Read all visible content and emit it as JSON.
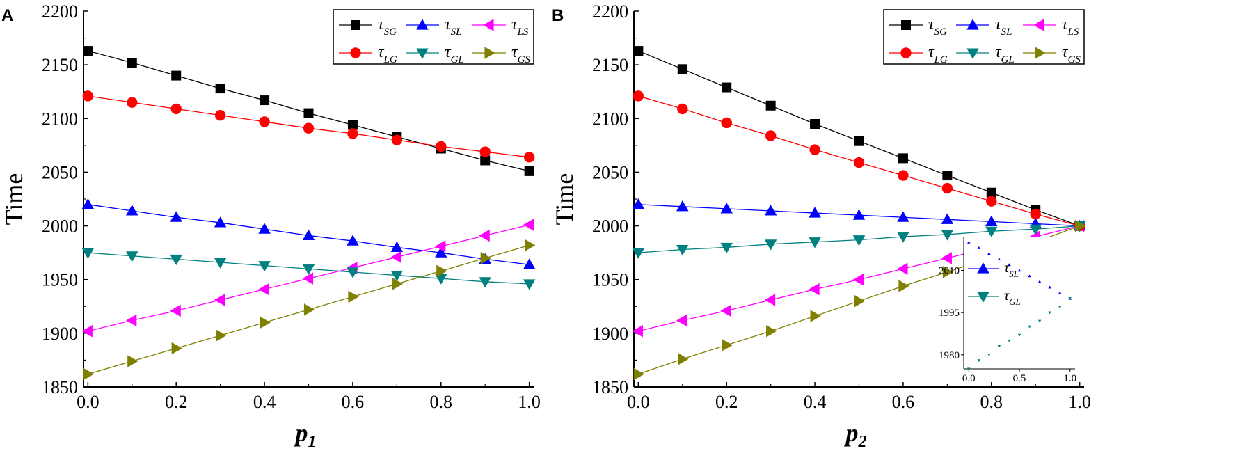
{
  "chart_data": [
    {
      "type": "line",
      "panel_label": "A",
      "xlabel_main": "p",
      "xlabel_sub": "1",
      "ylabel": "Time",
      "xlim": [
        -0.01,
        1.01
      ],
      "ylim": [
        1850,
        2200
      ],
      "xticks": [
        "0.0",
        "0.2",
        "0.4",
        "0.6",
        "0.8",
        "1.0"
      ],
      "yticks": [
        "1850",
        "1900",
        "1950",
        "2000",
        "2050",
        "2100",
        "2150",
        "2200"
      ],
      "legend_placement": "top-right",
      "x": [
        0,
        0.1,
        0.2,
        0.3,
        0.4,
        0.5,
        0.6,
        0.7,
        0.8,
        0.9,
        1.0
      ],
      "series": [
        {
          "name": "τ",
          "sub": "SG",
          "color": "#000000",
          "marker": "square",
          "values": [
            2163,
            2152,
            2140,
            2128,
            2117,
            2105,
            2094,
            2083,
            2072,
            2061,
            2051
          ]
        },
        {
          "name": "τ",
          "sub": "SL",
          "color": "#0000ff",
          "marker": "triangle-up",
          "values": [
            2020,
            2014,
            2008,
            2003,
            1997,
            1991,
            1986,
            1980,
            1975,
            1969,
            1964
          ]
        },
        {
          "name": "τ",
          "sub": "LS",
          "color": "#ff00ff",
          "marker": "triangle-left",
          "values": [
            1902,
            1912,
            1921,
            1931,
            1941,
            1951,
            1961,
            1971,
            1981,
            1991,
            2001
          ]
        },
        {
          "name": "τ",
          "sub": "LG",
          "color": "#ff0000",
          "marker": "circle",
          "values": [
            2121,
            2115,
            2109,
            2103,
            2097,
            2091,
            2086,
            2080,
            2074,
            2069,
            2064
          ]
        },
        {
          "name": "τ",
          "sub": "GL",
          "color": "#008080",
          "marker": "triangle-down",
          "values": [
            1975,
            1972,
            1969,
            1966,
            1963,
            1960,
            1957,
            1954,
            1951,
            1948,
            1946
          ]
        },
        {
          "name": "τ",
          "sub": "GS",
          "color": "#808000",
          "marker": "triangle-right",
          "values": [
            1862,
            1874,
            1886,
            1898,
            1910,
            1922,
            1934,
            1946,
            1958,
            1970,
            1982
          ]
        }
      ]
    },
    {
      "type": "line",
      "panel_label": "B",
      "xlabel_main": "p",
      "xlabel_sub": "2",
      "ylabel": "Time",
      "xlim": [
        -0.01,
        1.01
      ],
      "ylim": [
        1850,
        2200
      ],
      "xticks": [
        "0.0",
        "0.2",
        "0.4",
        "0.6",
        "0.8",
        "1.0"
      ],
      "yticks": [
        "1850",
        "1900",
        "1950",
        "2000",
        "2050",
        "2100",
        "2150",
        "2200"
      ],
      "legend_placement": "top-right",
      "x": [
        0,
        0.1,
        0.2,
        0.3,
        0.4,
        0.5,
        0.6,
        0.7,
        0.8,
        0.9,
        1.0
      ],
      "series": [
        {
          "name": "τ",
          "sub": "SG",
          "color": "#000000",
          "marker": "square",
          "values": [
            2163,
            2146,
            2129,
            2112,
            2095,
            2079,
            2063,
            2047,
            2031,
            2015,
            2000
          ]
        },
        {
          "name": "τ",
          "sub": "SL",
          "color": "#0000ff",
          "marker": "triangle-up",
          "values": [
            2020,
            2018,
            2016,
            2014,
            2012,
            2010,
            2008,
            2006,
            2004,
            2002,
            2000
          ]
        },
        {
          "name": "τ",
          "sub": "LS",
          "color": "#ff00ff",
          "marker": "triangle-left",
          "values": [
            1902,
            1912,
            1921,
            1931,
            1941,
            1950,
            1960,
            1970,
            1980,
            1990,
            2000
          ]
        },
        {
          "name": "τ",
          "sub": "LG",
          "color": "#ff0000",
          "marker": "circle",
          "values": [
            2121,
            2109,
            2096,
            2084,
            2071,
            2059,
            2047,
            2035,
            2023,
            2011,
            2000
          ]
        },
        {
          "name": "τ",
          "sub": "GL",
          "color": "#008080",
          "marker": "triangle-down",
          "values": [
            1975,
            1978,
            1980,
            1983,
            1985,
            1987,
            1990,
            1992,
            1995,
            1997,
            2000
          ]
        },
        {
          "name": "τ",
          "sub": "GS",
          "color": "#808000",
          "marker": "triangle-right",
          "values": [
            1862,
            1876,
            1889,
            1902,
            1916,
            1930,
            1944,
            1957,
            1971,
            1985,
            2000
          ]
        }
      ],
      "inset": {
        "xlim": [
          -0.05,
          1.05
        ],
        "ylim": [
          1975,
          2022
        ],
        "xticks": [
          "0.0",
          "0.5",
          "1.0"
        ],
        "yticks": [
          "1980",
          "1995",
          "2010"
        ],
        "x": [
          0,
          0.1,
          0.2,
          0.3,
          0.4,
          0.5,
          0.6,
          0.7,
          0.8,
          0.9,
          1.0
        ],
        "series": [
          {
            "name": "τ",
            "sub": "SL",
            "color": "#0000ff",
            "marker": "triangle-up",
            "values": [
              2020,
              2018,
              2016,
              2014,
              2012,
              2010,
              2008,
              2006,
              2004,
              2002,
              2000
            ]
          },
          {
            "name": "τ",
            "sub": "GL",
            "color": "#008080",
            "marker": "triangle-down",
            "values": [
              1975,
              1978,
              1980,
              1983,
              1985,
              1987,
              1990,
              1992,
              1995,
              1997,
              2000
            ]
          }
        ]
      }
    }
  ]
}
